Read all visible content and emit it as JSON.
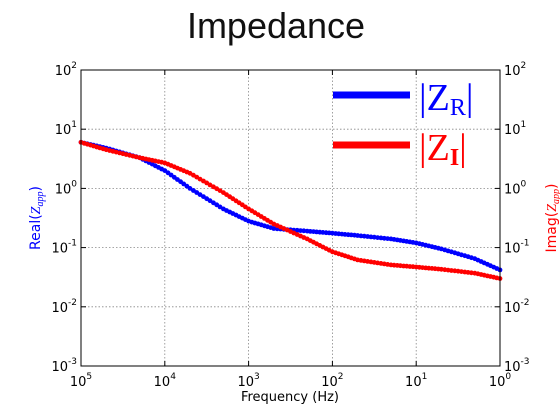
{
  "chart_data": {
    "type": "line",
    "title": "Impedance",
    "xlabel": "Frequency (Hz)",
    "ylabel_left": {
      "prefix": "Real(",
      "z": "Z",
      "sub": "app",
      "suffix": ")"
    },
    "ylabel_right": {
      "prefix": "Imag(",
      "z": "Z",
      "sub": "app",
      "suffix": ")"
    },
    "x_scale": "log",
    "x_reversed": true,
    "xlim": [
      100000,
      1
    ],
    "y_scale": "log",
    "ylim": [
      0.001,
      100
    ],
    "grid": true,
    "legend_position": "top-right",
    "x_ticks": [
      {
        "base": "10",
        "exp": "5"
      },
      {
        "base": "10",
        "exp": "4"
      },
      {
        "base": "10",
        "exp": "3"
      },
      {
        "base": "10",
        "exp": "2"
      },
      {
        "base": "10",
        "exp": "1"
      },
      {
        "base": "10",
        "exp": "0"
      }
    ],
    "y_ticks": [
      {
        "base": "10",
        "exp": "-3"
      },
      {
        "base": "10",
        "exp": "-2"
      },
      {
        "base": "10",
        "exp": "-1"
      },
      {
        "base": "10",
        "exp": "0"
      },
      {
        "base": "10",
        "exp": "1"
      },
      {
        "base": "10",
        "exp": "2"
      }
    ],
    "series": [
      {
        "name": "|Z_R|",
        "legend": {
          "left": "|Z",
          "sub": "R",
          "right": "|"
        },
        "color": "#0000ff",
        "points": [
          [
            100000,
            6.0
          ],
          [
            50000,
            4.8
          ],
          [
            20000,
            3.3
          ],
          [
            10000,
            2.0
          ],
          [
            5000,
            1.0
          ],
          [
            2000,
            0.45
          ],
          [
            1000,
            0.28
          ],
          [
            500,
            0.21
          ],
          [
            200,
            0.19
          ],
          [
            100,
            0.175
          ],
          [
            50,
            0.16
          ],
          [
            20,
            0.14
          ],
          [
            10,
            0.12
          ],
          [
            5,
            0.095
          ],
          [
            2,
            0.065
          ],
          [
            1,
            0.042
          ]
        ]
      },
      {
        "name": "|Z_I|",
        "legend": {
          "left": "|Z",
          "sub": "I",
          "right": "|"
        },
        "color": "#ff0000",
        "points": [
          [
            100000,
            6.0
          ],
          [
            50000,
            4.5
          ],
          [
            20000,
            3.3
          ],
          [
            10000,
            2.7
          ],
          [
            5000,
            1.8
          ],
          [
            2000,
            0.85
          ],
          [
            1000,
            0.45
          ],
          [
            500,
            0.25
          ],
          [
            200,
            0.14
          ],
          [
            100,
            0.085
          ],
          [
            50,
            0.062
          ],
          [
            20,
            0.051
          ],
          [
            10,
            0.047
          ],
          [
            5,
            0.043
          ],
          [
            2,
            0.037
          ],
          [
            1,
            0.03
          ]
        ]
      }
    ]
  }
}
